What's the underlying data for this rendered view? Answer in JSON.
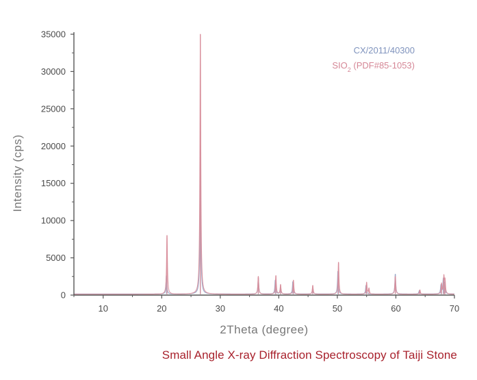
{
  "chart_data": {
    "type": "line",
    "xlabel": "2Theta (degree)",
    "ylabel": "Intensity (cps)",
    "xlim": [
      5,
      70
    ],
    "ylim": [
      0,
      35000
    ],
    "xticks": [
      10,
      20,
      30,
      40,
      50,
      60,
      70
    ],
    "yticks": [
      0,
      5000,
      10000,
      15000,
      20000,
      25000,
      30000,
      35000
    ],
    "grid": false,
    "legend_position": "top-right",
    "series": [
      {
        "name": "CX/2011/40300",
        "color": "#9aa9c9",
        "baseline": 150,
        "peaks": [
          {
            "x": 20.8,
            "y": 2600
          },
          {
            "x": 26.6,
            "y": 19500
          },
          {
            "x": 36.5,
            "y": 2300
          },
          {
            "x": 39.4,
            "y": 2000
          },
          {
            "x": 40.3,
            "y": 1100
          },
          {
            "x": 42.4,
            "y": 1800
          },
          {
            "x": 45.8,
            "y": 1000
          },
          {
            "x": 50.1,
            "y": 3200
          },
          {
            "x": 54.9,
            "y": 1300
          },
          {
            "x": 59.9,
            "y": 2800
          },
          {
            "x": 64.0,
            "y": 600
          },
          {
            "x": 67.7,
            "y": 1300
          },
          {
            "x": 68.1,
            "y": 2000
          },
          {
            "x": 68.3,
            "y": 1500
          }
        ]
      },
      {
        "name": "SIO2 (PDF#85-1053)",
        "color": "#d98f9c",
        "baseline": 120,
        "peaks": [
          {
            "x": 20.9,
            "y": 8000
          },
          {
            "x": 26.6,
            "y": 35000
          },
          {
            "x": 36.5,
            "y": 2500
          },
          {
            "x": 39.5,
            "y": 2600
          },
          {
            "x": 40.3,
            "y": 1400
          },
          {
            "x": 42.5,
            "y": 2000
          },
          {
            "x": 45.8,
            "y": 1300
          },
          {
            "x": 50.2,
            "y": 4400
          },
          {
            "x": 55.0,
            "y": 1700
          },
          {
            "x": 55.4,
            "y": 900
          },
          {
            "x": 59.9,
            "y": 2500
          },
          {
            "x": 64.1,
            "y": 700
          },
          {
            "x": 67.8,
            "y": 1500
          },
          {
            "x": 68.2,
            "y": 2400
          },
          {
            "x": 68.4,
            "y": 1900
          }
        ]
      }
    ],
    "legend_entries": [
      {
        "main": "CX/2011/40300",
        "sub": "",
        "rest": "",
        "color": "#7f93bd"
      },
      {
        "main": "SIO",
        "sub": "2",
        "rest": " (PDF#85-1053)",
        "color": "#d58796"
      }
    ]
  },
  "caption": "Small Angle X-ray Diffraction Spectroscopy of Taiji Stone"
}
